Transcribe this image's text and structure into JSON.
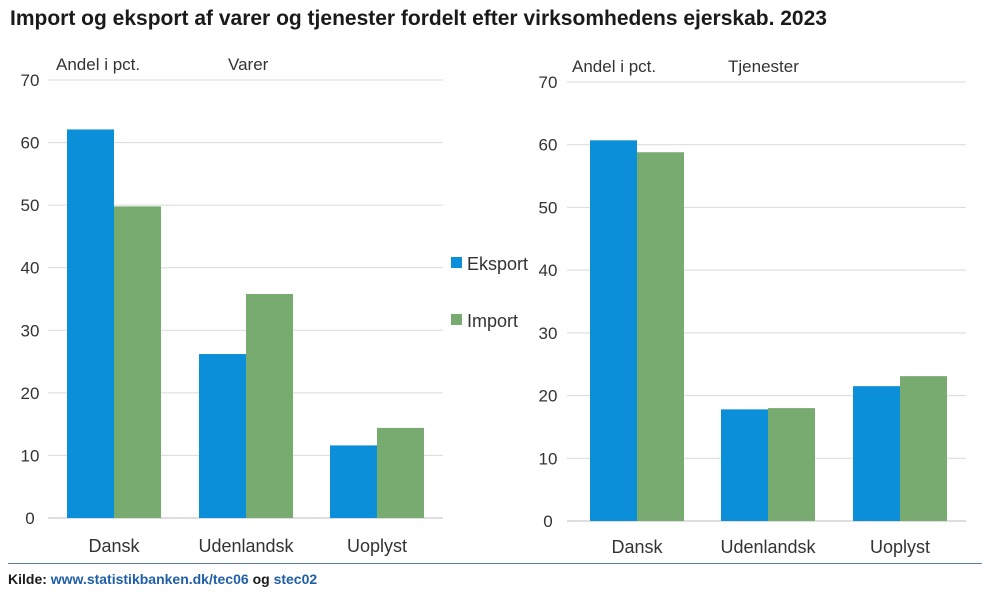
{
  "title": "Import og eksport af varer og tjenester fordelt efter virksomhedens ejerskab. 2023",
  "legend": {
    "items": [
      {
        "label": "Eksport",
        "color": "#0a8fd8"
      },
      {
        "label": "Import",
        "color": "#77ab6f"
      }
    ]
  },
  "source": {
    "prefix": "Kilde:",
    "link1": "www.statistikbanken.dk/tec06",
    "conj": "og",
    "link2": "stec02"
  },
  "chart_data": [
    {
      "type": "bar",
      "title": "Varer",
      "ylabel": "Andel i pct.",
      "ylim": [
        0,
        70
      ],
      "yticks": [
        0,
        10,
        20,
        30,
        40,
        50,
        60,
        70
      ],
      "grid": true,
      "categories": [
        "Dansk",
        "Udenlandsk",
        "Uoplyst"
      ],
      "series": [
        {
          "name": "Eksport",
          "values": [
            62.1,
            26.2,
            11.6
          ]
        },
        {
          "name": "Import",
          "values": [
            49.8,
            35.8,
            14.4
          ]
        }
      ]
    },
    {
      "type": "bar",
      "title": "Tjenester",
      "ylabel": "Andel i pct.",
      "ylim": [
        0,
        70
      ],
      "yticks": [
        0,
        10,
        20,
        30,
        40,
        50,
        60,
        70
      ],
      "grid": true,
      "categories": [
        "Dansk",
        "Udenlandsk",
        "Uoplyst"
      ],
      "series": [
        {
          "name": "Eksport",
          "values": [
            60.7,
            17.8,
            21.5
          ]
        },
        {
          "name": "Import",
          "values": [
            58.8,
            18.0,
            23.1
          ]
        }
      ]
    }
  ]
}
